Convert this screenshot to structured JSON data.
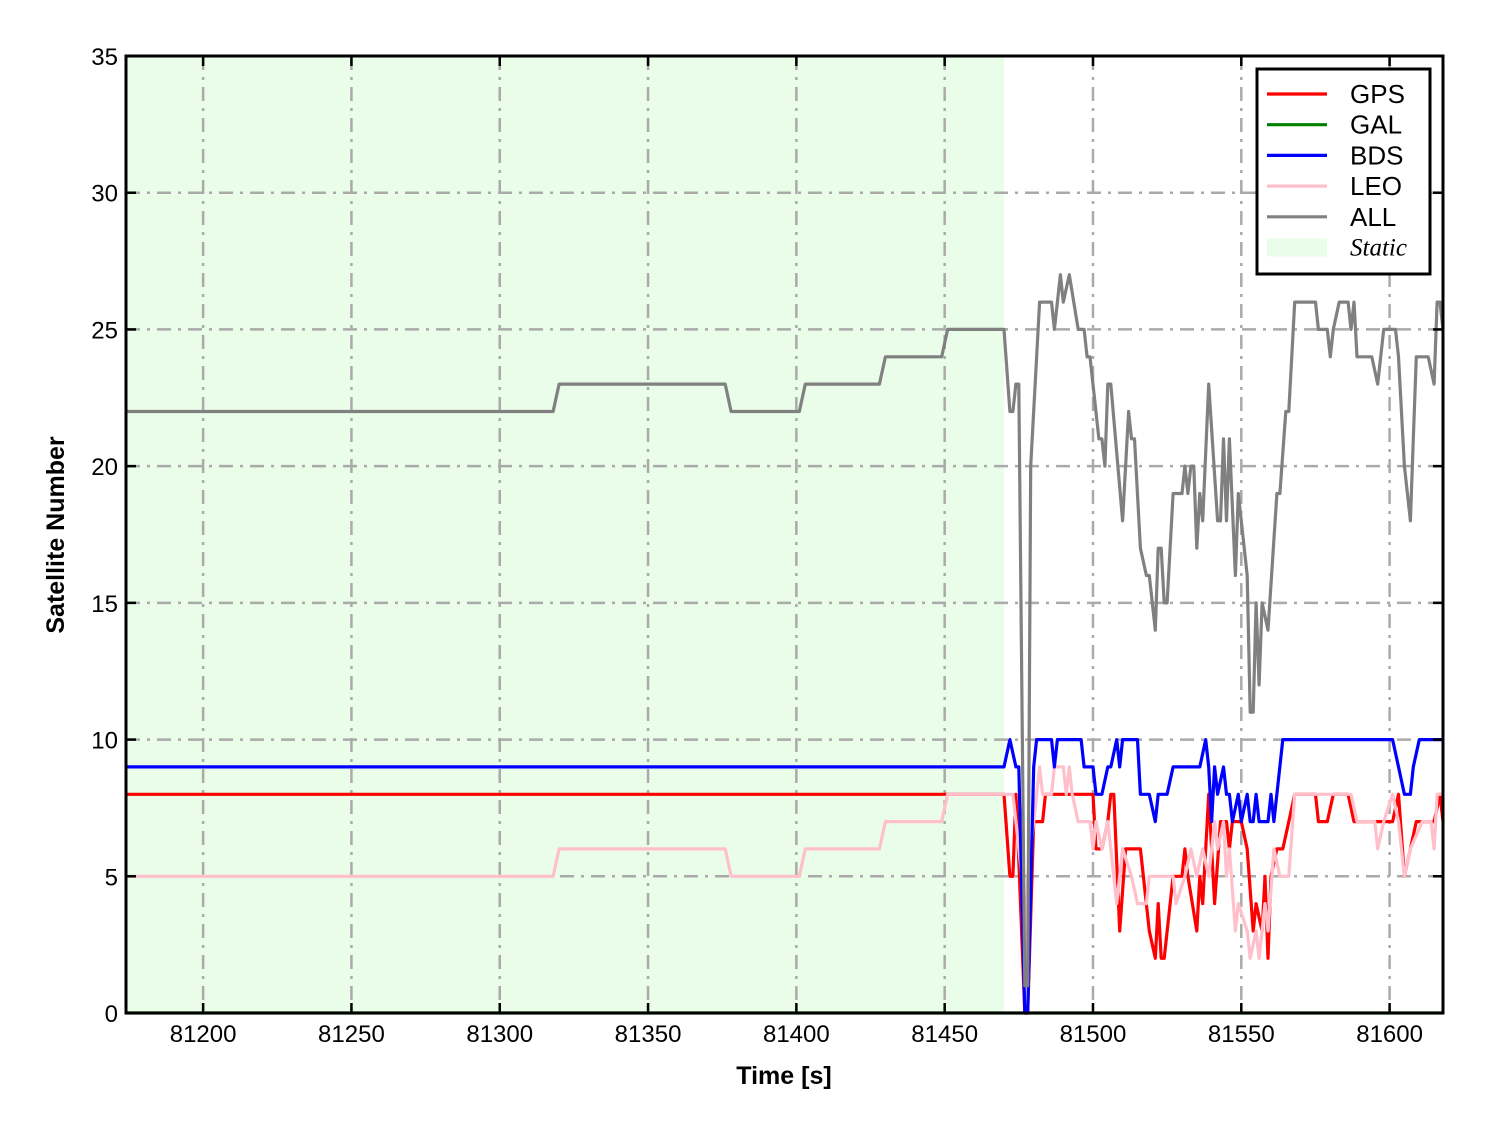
{
  "chart_data": {
    "type": "line",
    "xlabel": "Time [s]",
    "ylabel": "Satellite Number",
    "xlim": [
      81174,
      81618
    ],
    "ylim": [
      0,
      35
    ],
    "xticks": [
      81200,
      81250,
      81300,
      81350,
      81400,
      81450,
      81500,
      81550,
      81600
    ],
    "yticks": [
      0,
      5,
      10,
      15,
      20,
      25,
      30,
      35
    ],
    "grid": true,
    "legend_placement": "top-right",
    "shaded_regions": [
      {
        "name": "Static",
        "x": [
          81174,
          81470
        ],
        "color": "#e9fde9"
      }
    ],
    "series": [
      {
        "name": "GPS",
        "color": "#ff0000",
        "points": [
          [
            81174,
            8
          ],
          [
            81470,
            8
          ],
          [
            81472,
            5
          ],
          [
            81473,
            5
          ],
          [
            81474,
            8
          ],
          [
            81474.5,
            7
          ],
          [
            81477,
            0
          ],
          [
            81478,
            0
          ],
          [
            81480,
            7
          ],
          [
            81483,
            7
          ],
          [
            81484,
            8
          ],
          [
            81500,
            8
          ],
          [
            81501,
            6
          ],
          [
            81503,
            6
          ],
          [
            81505,
            7
          ],
          [
            81506,
            8
          ],
          [
            81507,
            8
          ],
          [
            81509,
            3
          ],
          [
            81511,
            6
          ],
          [
            81516,
            6
          ],
          [
            81519,
            3
          ],
          [
            81521,
            2
          ],
          [
            81522,
            4
          ],
          [
            81523,
            2
          ],
          [
            81524,
            2
          ],
          [
            81527,
            5
          ],
          [
            81530,
            5
          ],
          [
            81531,
            6
          ],
          [
            81532,
            5
          ],
          [
            81535,
            3
          ],
          [
            81536,
            5
          ],
          [
            81537,
            4
          ],
          [
            81539,
            8
          ],
          [
            81541,
            4
          ],
          [
            81543,
            7
          ],
          [
            81545,
            7
          ],
          [
            81546,
            6
          ],
          [
            81547,
            7
          ],
          [
            81550,
            7
          ],
          [
            81552,
            6
          ],
          [
            81554,
            3
          ],
          [
            81555,
            4
          ],
          [
            81557,
            3
          ],
          [
            81558,
            5
          ],
          [
            81559,
            2
          ],
          [
            81560,
            5
          ],
          [
            81562,
            6
          ],
          [
            81564,
            6
          ],
          [
            81566,
            7
          ],
          [
            81568,
            8
          ],
          [
            81575,
            8
          ],
          [
            81576,
            7
          ],
          [
            81579,
            7
          ],
          [
            81581,
            8
          ],
          [
            81586,
            8
          ],
          [
            81588,
            7
          ],
          [
            81601,
            7
          ],
          [
            81603,
            8
          ],
          [
            81605,
            5
          ],
          [
            81607,
            6
          ],
          [
            81609,
            7
          ],
          [
            81615,
            7
          ],
          [
            81617,
            8
          ],
          [
            81618,
            7
          ]
        ]
      },
      {
        "name": "GAL",
        "color": "#008000",
        "points": [
          [
            81174,
            0
          ],
          [
            81618,
            0
          ]
        ]
      },
      {
        "name": "BDS",
        "color": "#0000ff",
        "points": [
          [
            81174,
            9
          ],
          [
            81470,
            9
          ],
          [
            81472,
            10
          ],
          [
            81474,
            9
          ],
          [
            81475,
            9
          ],
          [
            81477,
            0
          ],
          [
            81478,
            0
          ],
          [
            81480,
            9
          ],
          [
            81481,
            10
          ],
          [
            81486,
            10
          ],
          [
            81487,
            9
          ],
          [
            81488,
            10
          ],
          [
            81496,
            10
          ],
          [
            81497,
            9
          ],
          [
            81500,
            9
          ],
          [
            81501,
            8
          ],
          [
            81503,
            8
          ],
          [
            81505,
            9
          ],
          [
            81506,
            9
          ],
          [
            81508,
            10
          ],
          [
            81509,
            9
          ],
          [
            81510,
            10
          ],
          [
            81515,
            10
          ],
          [
            81516,
            8
          ],
          [
            81519,
            8
          ],
          [
            81521,
            7
          ],
          [
            81522,
            8
          ],
          [
            81525,
            8
          ],
          [
            81527,
            9
          ],
          [
            81536,
            9
          ],
          [
            81538,
            10
          ],
          [
            81539,
            9
          ],
          [
            81540,
            7
          ],
          [
            81541,
            9
          ],
          [
            81542,
            8
          ],
          [
            81544,
            9
          ],
          [
            81545,
            8
          ],
          [
            81546,
            8
          ],
          [
            81547,
            7
          ],
          [
            81549,
            8
          ],
          [
            81550,
            7
          ],
          [
            81552,
            8
          ],
          [
            81553,
            7
          ],
          [
            81554,
            7
          ],
          [
            81555,
            8
          ],
          [
            81556,
            7
          ],
          [
            81559,
            7
          ],
          [
            81560,
            8
          ],
          [
            81561,
            7
          ],
          [
            81564,
            10
          ],
          [
            81601,
            10
          ],
          [
            81603,
            9
          ],
          [
            81605,
            8
          ],
          [
            81607,
            8
          ],
          [
            81608,
            9
          ],
          [
            81610,
            10
          ],
          [
            81618,
            10
          ]
        ]
      },
      {
        "name": "LEO",
        "color": "#ffc0cb",
        "points": [
          [
            81174,
            5
          ],
          [
            81318,
            5
          ],
          [
            81320,
            6
          ],
          [
            81376,
            6
          ],
          [
            81378,
            5
          ],
          [
            81401,
            5
          ],
          [
            81403,
            6
          ],
          [
            81428,
            6
          ],
          [
            81430,
            7
          ],
          [
            81449,
            7
          ],
          [
            81451,
            8
          ],
          [
            81473,
            8
          ],
          [
            81474,
            7
          ],
          [
            81476,
            5
          ],
          [
            81477,
            1
          ],
          [
            81478,
            5
          ],
          [
            81480,
            7
          ],
          [
            81482,
            9
          ],
          [
            81483,
            8
          ],
          [
            81486,
            8
          ],
          [
            81487,
            9
          ],
          [
            81490,
            9
          ],
          [
            81491,
            8
          ],
          [
            81492,
            9
          ],
          [
            81493,
            8
          ],
          [
            81495,
            7
          ],
          [
            81499,
            7
          ],
          [
            81500,
            6
          ],
          [
            81501,
            7
          ],
          [
            81503,
            6
          ],
          [
            81505,
            7
          ],
          [
            81506,
            6
          ],
          [
            81508,
            4
          ],
          [
            81510,
            6
          ],
          [
            81513,
            5
          ],
          [
            81515,
            4
          ],
          [
            81518,
            4
          ],
          [
            81519,
            5
          ],
          [
            81527,
            5
          ],
          [
            81528,
            4
          ],
          [
            81531,
            5
          ],
          [
            81533,
            6
          ],
          [
            81535,
            5
          ],
          [
            81537,
            6
          ],
          [
            81539,
            5
          ],
          [
            81541,
            7
          ],
          [
            81542,
            6
          ],
          [
            81544,
            7
          ],
          [
            81545,
            5
          ],
          [
            81546,
            6
          ],
          [
            81548,
            3
          ],
          [
            81549,
            4
          ],
          [
            81552,
            3
          ],
          [
            81553,
            2
          ],
          [
            81555,
            3
          ],
          [
            81556,
            2
          ],
          [
            81558,
            4
          ],
          [
            81559,
            3
          ],
          [
            81561,
            6
          ],
          [
            81563,
            5
          ],
          [
            81566,
            5
          ],
          [
            81568,
            8
          ],
          [
            81587,
            8
          ],
          [
            81589,
            7
          ],
          [
            81595,
            7
          ],
          [
            81596,
            6
          ],
          [
            81598,
            7
          ],
          [
            81601,
            8
          ],
          [
            81603,
            7
          ],
          [
            81605,
            5
          ],
          [
            81607,
            6
          ],
          [
            81611,
            7
          ],
          [
            81614,
            7
          ],
          [
            81615,
            6
          ],
          [
            81616,
            8
          ],
          [
            81618,
            8
          ]
        ]
      },
      {
        "name": "ALL",
        "color": "#808080",
        "points": [
          [
            81174,
            22
          ],
          [
            81318,
            22
          ],
          [
            81320,
            23
          ],
          [
            81376,
            23
          ],
          [
            81378,
            22
          ],
          [
            81401,
            22
          ],
          [
            81403,
            23
          ],
          [
            81428,
            23
          ],
          [
            81430,
            24
          ],
          [
            81449,
            24
          ],
          [
            81451,
            25
          ],
          [
            81470,
            25
          ],
          [
            81472,
            22
          ],
          [
            81473,
            22
          ],
          [
            81474,
            23
          ],
          [
            81475,
            23
          ],
          [
            81477,
            1
          ],
          [
            81478,
            1
          ],
          [
            81479,
            20
          ],
          [
            81482,
            26
          ],
          [
            81486,
            26
          ],
          [
            81487,
            25
          ],
          [
            81489,
            27
          ],
          [
            81490,
            26
          ],
          [
            81492,
            27
          ],
          [
            81495,
            25
          ],
          [
            81497,
            25
          ],
          [
            81498,
            24
          ],
          [
            81499,
            24
          ],
          [
            81502,
            21
          ],
          [
            81503,
            21
          ],
          [
            81504,
            20
          ],
          [
            81505,
            23
          ],
          [
            81506,
            23
          ],
          [
            81510,
            18
          ],
          [
            81512,
            22
          ],
          [
            81513,
            21
          ],
          [
            81514,
            21
          ],
          [
            81516,
            17
          ],
          [
            81518,
            16
          ],
          [
            81519,
            16
          ],
          [
            81521,
            14
          ],
          [
            81522,
            17
          ],
          [
            81523,
            17
          ],
          [
            81524,
            15
          ],
          [
            81525,
            15
          ],
          [
            81527,
            19
          ],
          [
            81530,
            19
          ],
          [
            81531,
            20
          ],
          [
            81532,
            19
          ],
          [
            81533,
            20
          ],
          [
            81534,
            20
          ],
          [
            81535,
            17
          ],
          [
            81536,
            19
          ],
          [
            81537,
            18
          ],
          [
            81539,
            23
          ],
          [
            81542,
            18
          ],
          [
            81543,
            18
          ],
          [
            81544,
            21
          ],
          [
            81545,
            18
          ],
          [
            81546,
            21
          ],
          [
            81548,
            16
          ],
          [
            81549,
            19
          ],
          [
            81552,
            16
          ],
          [
            81553,
            11
          ],
          [
            81554,
            11
          ],
          [
            81555,
            15
          ],
          [
            81556,
            12
          ],
          [
            81557,
            15
          ],
          [
            81559,
            14
          ],
          [
            81562,
            19
          ],
          [
            81563,
            19
          ],
          [
            81565,
            22
          ],
          [
            81566,
            22
          ],
          [
            81568,
            26
          ],
          [
            81575,
            26
          ],
          [
            81576,
            25
          ],
          [
            81579,
            25
          ],
          [
            81580,
            24
          ],
          [
            81581,
            25
          ],
          [
            81583,
            26
          ],
          [
            81586,
            26
          ],
          [
            81587,
            25
          ],
          [
            81588,
            26
          ],
          [
            81589,
            24
          ],
          [
            81594,
            24
          ],
          [
            81596,
            23
          ],
          [
            81598,
            25
          ],
          [
            81602,
            25
          ],
          [
            81603,
            24
          ],
          [
            81605,
            20
          ],
          [
            81607,
            18
          ],
          [
            81608,
            21
          ],
          [
            81609,
            24
          ],
          [
            81613,
            24
          ],
          [
            81615,
            23
          ],
          [
            81616,
            26
          ],
          [
            81617,
            26
          ],
          [
            81618,
            25
          ]
        ]
      }
    ]
  }
}
